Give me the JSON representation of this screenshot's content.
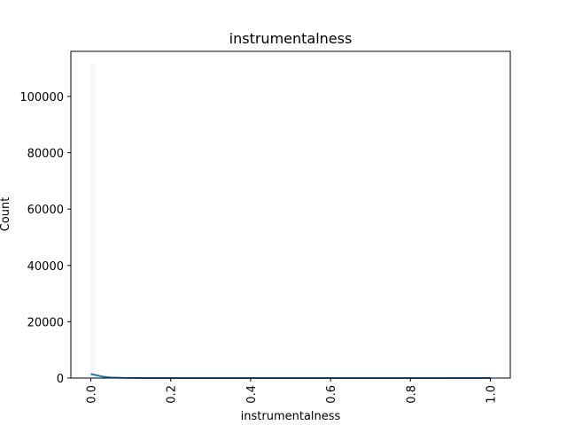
{
  "chart_data": {
    "type": "bar",
    "title": "instrumentalness",
    "xlabel": "instrumentalness",
    "ylabel": "Count",
    "xlim": [
      -0.05,
      1.05
    ],
    "ylim": [
      0,
      116000
    ],
    "x_ticks": [
      0.0,
      0.2,
      0.4,
      0.6,
      0.8,
      1.0
    ],
    "x_tick_labels": [
      "0.0",
      "0.2",
      "0.4",
      "0.6",
      "0.8",
      "1.0"
    ],
    "y_ticks": [
      0,
      20000,
      40000,
      60000,
      80000,
      100000
    ],
    "y_tick_labels": [
      "0",
      "20000",
      "40000",
      "60000",
      "80000",
      "100000"
    ],
    "grid": false,
    "bar_color": "#1f77b4",
    "kde_color": "#1f77b4",
    "histogram": {
      "bin_edges": [
        0.0,
        0.01,
        0.02,
        0.03,
        0.04,
        0.05,
        0.06,
        0.07,
        0.08,
        0.09,
        0.1,
        0.2,
        0.3,
        0.4,
        0.5,
        0.6,
        0.7,
        0.8,
        0.9,
        1.0
      ],
      "counts": [
        111000,
        600,
        300,
        200,
        150,
        120,
        100,
        90,
        80,
        70,
        300,
        250,
        200,
        180,
        170,
        160,
        180,
        250,
        300
      ]
    },
    "kde": {
      "x": [
        0.0,
        0.005,
        0.01,
        0.02,
        0.03,
        0.05,
        0.08,
        0.12,
        0.2,
        0.3,
        0.4,
        0.5,
        0.6,
        0.7,
        0.8,
        0.9,
        1.0
      ],
      "y": [
        1400,
        1300,
        1150,
        800,
        500,
        200,
        60,
        20,
        10,
        8,
        7,
        7,
        7,
        7,
        8,
        10,
        12
      ]
    }
  }
}
